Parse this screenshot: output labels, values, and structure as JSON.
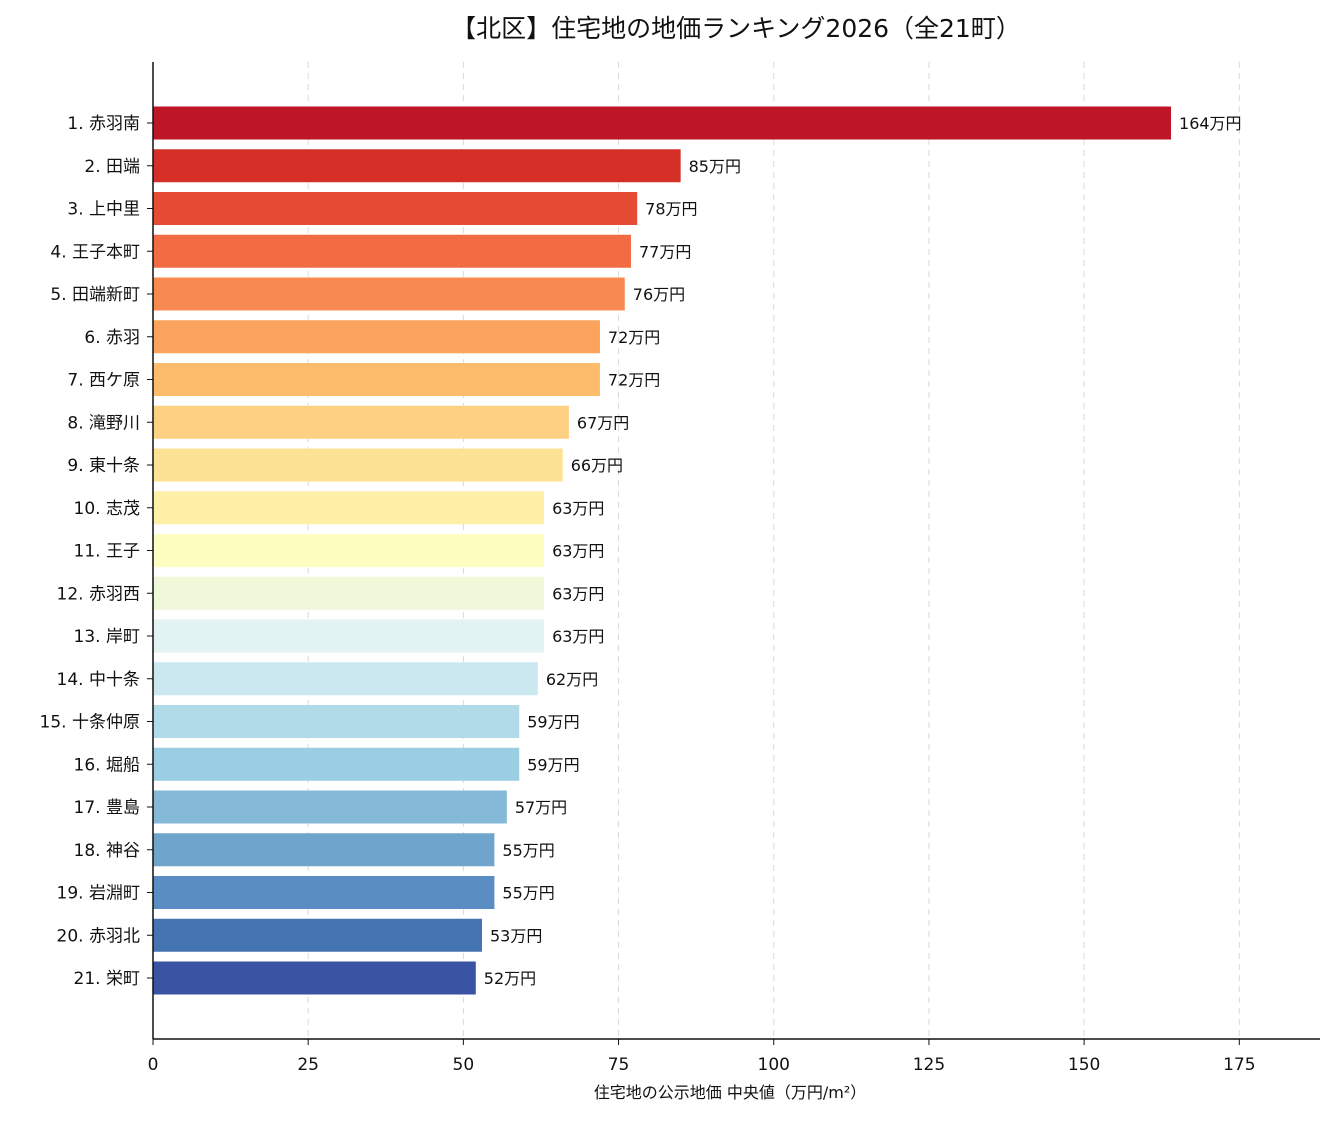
{
  "chart_data": {
    "type": "bar",
    "orientation": "horizontal",
    "title": "【北区】住宅地の地価ランキング2026（全21町）",
    "xlabel": "住宅地の公示地価 中央値（万円/m²）",
    "ylabel": "",
    "xlim": [
      0,
      188
    ],
    "xticks": [
      0,
      25,
      50,
      75,
      100,
      125,
      150,
      175
    ],
    "grid": "x-dashed",
    "value_suffix": "万円",
    "categories": [
      "1. 赤羽南",
      "2. 田端",
      "3. 上中里",
      "4. 王子本町",
      "5. 田端新町",
      "6. 赤羽",
      "7. 西ケ原",
      "8. 滝野川",
      "9. 東十条",
      "10. 志茂",
      "11. 王子",
      "12. 赤羽西",
      "13. 岸町",
      "14. 中十条",
      "15. 十条仲原",
      "16. 堀船",
      "17. 豊島",
      "18. 神谷",
      "19. 岩淵町",
      "20. 赤羽北",
      "21. 栄町"
    ],
    "values": [
      164,
      85,
      78,
      77,
      76,
      72,
      72,
      67,
      66,
      63,
      63,
      63,
      63,
      62,
      59,
      59,
      57,
      55,
      55,
      53,
      52
    ],
    "value_labels": [
      "164万円",
      "85万円",
      "78万円",
      "77万円",
      "76万円",
      "72万円",
      "72万円",
      "67万円",
      "66万円",
      "63万円",
      "63万円",
      "63万円",
      "63万円",
      "62万円",
      "59万円",
      "59万円",
      "57万円",
      "55万円",
      "55万円",
      "53万円",
      "52万円"
    ],
    "colors": [
      "#be1627",
      "#d62f27",
      "#e54b35",
      "#f26b43",
      "#f88950",
      "#fba35c",
      "#fdbb6c",
      "#fed081",
      "#fee293",
      "#fff0a8",
      "#fefec0",
      "#eff8d8",
      "#e2f3f3",
      "#cbe8f1",
      "#b1dbe9",
      "#9bcde3",
      "#85b9d8",
      "#6fa5cc",
      "#5a8dc1",
      "#4574b3",
      "#3a54a3"
    ]
  }
}
